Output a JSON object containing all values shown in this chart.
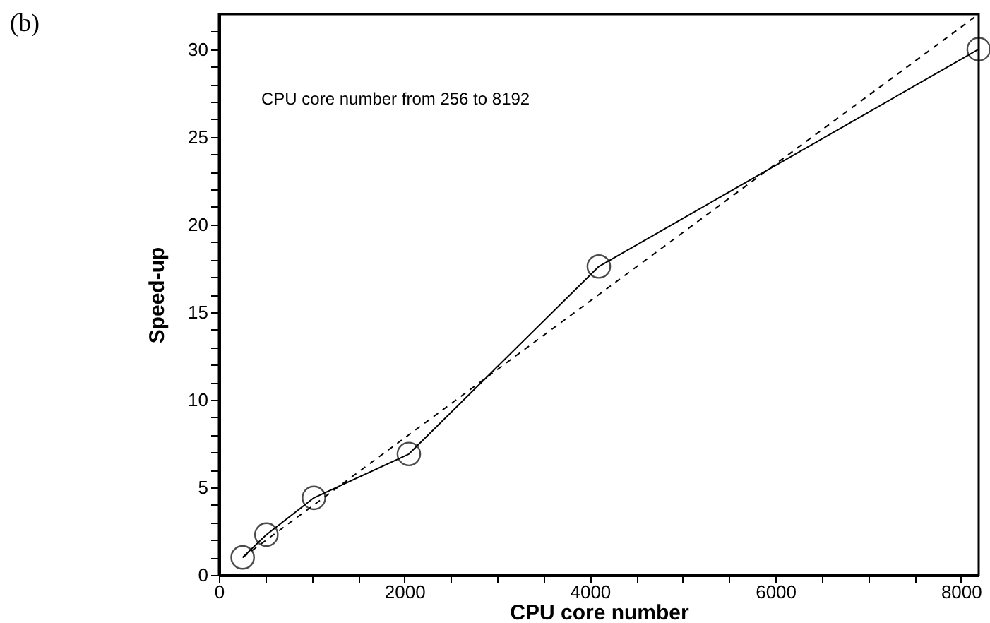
{
  "chart_data": {
    "type": "line",
    "xlabel": "CPU core number",
    "ylabel": "Speed-up",
    "annotations": [
      "(b)",
      "CPU core number from 256 to 8192"
    ],
    "series": [
      {
        "color": "#000000",
        "marker": "circle",
        "line_style": "solid",
        "x": [
          256,
          512,
          1024,
          2048,
          4096,
          8192
        ],
        "values": [
          1,
          2.3,
          4.4,
          6.9,
          17.6,
          30
        ]
      },
      {
        "color": "#000000",
        "marker": "none",
        "line_style": "dashed",
        "x": [
          256,
          8192
        ],
        "values": [
          1,
          32
        ]
      }
    ],
    "xlim": [
      0,
      8192
    ],
    "ylim": [
      0,
      32
    ],
    "xticks": [
      0,
      {
        "value": 500,
        "label": null
      },
      {
        "value": 1000,
        "label": null
      },
      {
        "value": 1500,
        "label": null
      },
      2000,
      {
        "value": 2500,
        "label": null
      },
      {
        "value": 3000,
        "label": null
      },
      {
        "value": 3500,
        "label": null
      },
      4000,
      {
        "value": 4500,
        "label": null
      },
      {
        "value": 5000,
        "label": null
      },
      {
        "value": 5500,
        "label": null
      },
      6000,
      {
        "value": 6500,
        "label": null
      },
      {
        "value": 7000,
        "label": null
      },
      {
        "value": 7500,
        "label": null
      },
      8000
    ],
    "yticks": [
      0,
      {
        "value": 1,
        "label": null
      },
      {
        "value": 2,
        "label": null
      },
      {
        "value": 3,
        "label": null
      },
      {
        "value": 4,
        "label": null
      },
      5,
      {
        "value": 6,
        "label": null
      },
      {
        "value": 7,
        "label": null
      },
      {
        "value": 8,
        "label": null
      },
      {
        "value": 9,
        "label": null
      },
      10,
      {
        "value": 11,
        "label": null
      },
      {
        "value": 12,
        "label": null
      },
      {
        "value": 13,
        "label": null
      },
      {
        "value": 14,
        "label": null
      },
      15,
      {
        "value": 16,
        "label": null
      },
      {
        "value": 17,
        "label": null
      },
      {
        "value": 18,
        "label": null
      },
      {
        "value": 19,
        "label": null
      },
      20,
      {
        "value": 21,
        "label": null
      },
      {
        "value": 22,
        "label": null
      },
      {
        "value": 23,
        "label": null
      },
      {
        "value": 24,
        "label": null
      },
      25,
      {
        "value": 26,
        "label": null
      },
      {
        "value": 27,
        "label": null
      },
      {
        "value": 28,
        "label": null
      },
      {
        "value": 29,
        "label": null
      },
      30,
      {
        "value": 31,
        "label": null
      }
    ],
    "grid": false
  }
}
